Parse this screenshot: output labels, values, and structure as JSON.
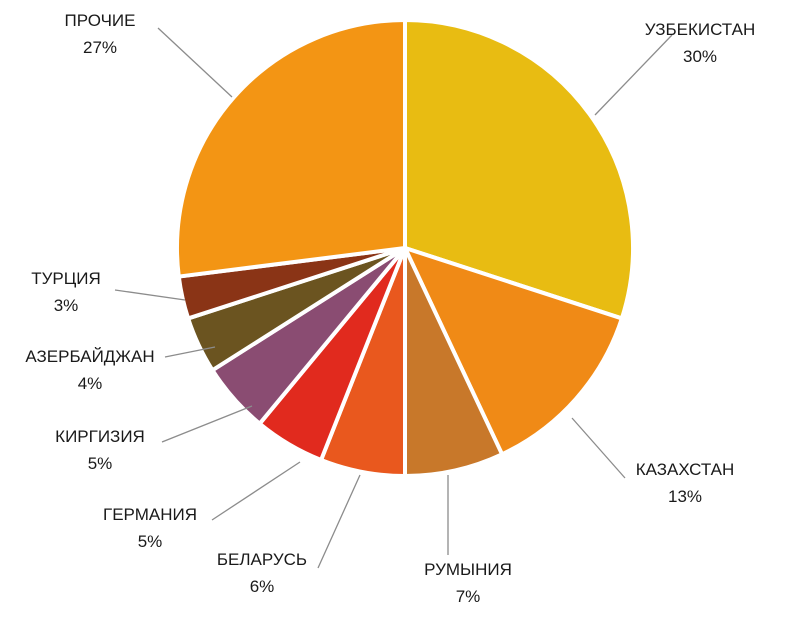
{
  "chart_data": {
    "type": "pie",
    "title": "",
    "slices": [
      {
        "name": "УЗБЕКИСТАН",
        "value": 30,
        "label": "30%",
        "color": "#E8BC12"
      },
      {
        "name": "КАЗАХСТАН",
        "value": 13,
        "label": "13%",
        "color": "#F08A16"
      },
      {
        "name": "РУМЫНИЯ",
        "value": 7,
        "label": "7%",
        "color": "#C8782A"
      },
      {
        "name": "БЕЛАРУСЬ",
        "value": 6,
        "label": "6%",
        "color": "#E9581E"
      },
      {
        "name": "ГЕРМАНИЯ",
        "value": 5,
        "label": "5%",
        "color": "#E12A1E"
      },
      {
        "name": "КИРГИЗИЯ",
        "value": 5,
        "label": "5%",
        "color": "#8A4C72"
      },
      {
        "name": "АЗЕРБАЙДЖАН",
        "value": 4,
        "label": "4%",
        "color": "#6B5420"
      },
      {
        "name": "ТУРЦИЯ",
        "value": 3,
        "label": "3%",
        "color": "#8A3416"
      },
      {
        "name": "ПРОЧИЕ",
        "value": 27,
        "label": "27%",
        "color": "#F39514"
      }
    ]
  }
}
